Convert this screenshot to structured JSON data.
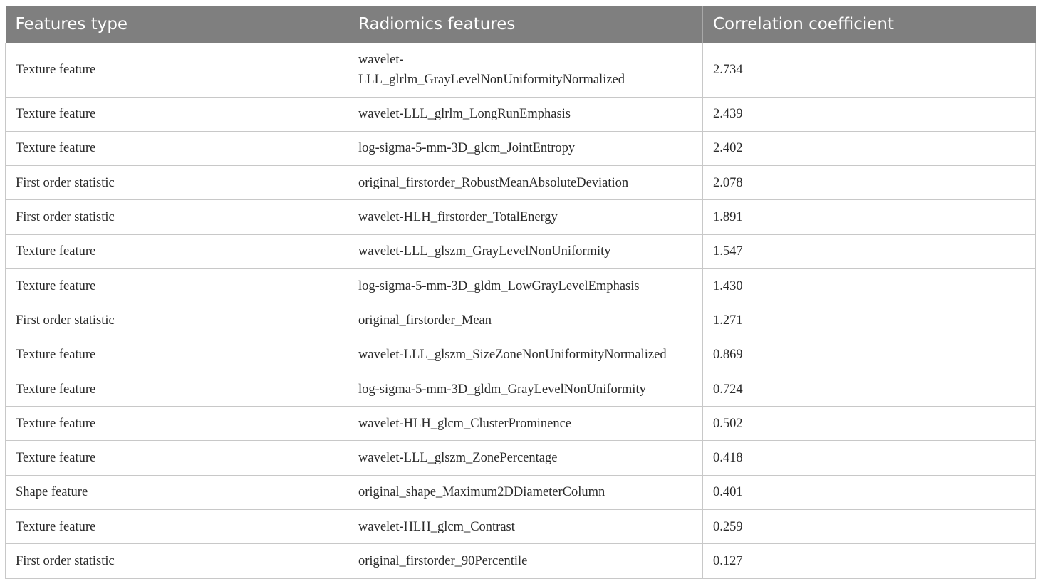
{
  "table": {
    "headers": [
      "Features type",
      "Radiomics features",
      "Correlation coefficient"
    ],
    "header_color": "#7f7f7f",
    "rows": [
      [
        "Texture feature",
        "wavelet-LLL_glrlm_GrayLevelNonUniformityNormalized",
        "2.734"
      ],
      [
        "Texture feature",
        "wavelet-LLL_glrlm_LongRunEmphasis",
        "2.439"
      ],
      [
        "Texture feature",
        "log-sigma-5-mm-3D_glcm_JointEntropy",
        "2.402"
      ],
      [
        "First order statistic",
        "original_firstorder_RobustMeanAbsoluteDeviation",
        "2.078"
      ],
      [
        "First order statistic",
        "wavelet-HLH_firstorder_TotalEnergy",
        "1.891"
      ],
      [
        "Texture feature",
        "wavelet-LLL_glszm_GrayLevelNonUniformity",
        "1.547"
      ],
      [
        "Texture feature",
        "log-sigma-5-mm-3D_gldm_LowGrayLevelEmphasis",
        "1.430"
      ],
      [
        "First order statistic",
        "original_firstorder_Mean",
        "1.271"
      ],
      [
        "Texture feature",
        "wavelet-LLL_glszm_SizeZoneNonUniformityNormalized",
        "0.869"
      ],
      [
        "Texture feature",
        "log-sigma-5-mm-3D_gldm_GrayLevelNonUniformity",
        "0.724"
      ],
      [
        "Texture feature",
        "wavelet-HLH_glcm_ClusterProminence",
        "0.502"
      ],
      [
        "Texture feature",
        "wavelet-LLL_glszm_ZonePercentage",
        "0.418"
      ],
      [
        "Shape feature",
        "original_shape_Maximum2DDiameterColumn",
        "0.401"
      ],
      [
        "Texture feature",
        "wavelet-HLH_glcm_Contrast",
        "0.259"
      ],
      [
        "First order statistic",
        "original_firstorder_90Percentile",
        "0.127"
      ]
    ]
  }
}
